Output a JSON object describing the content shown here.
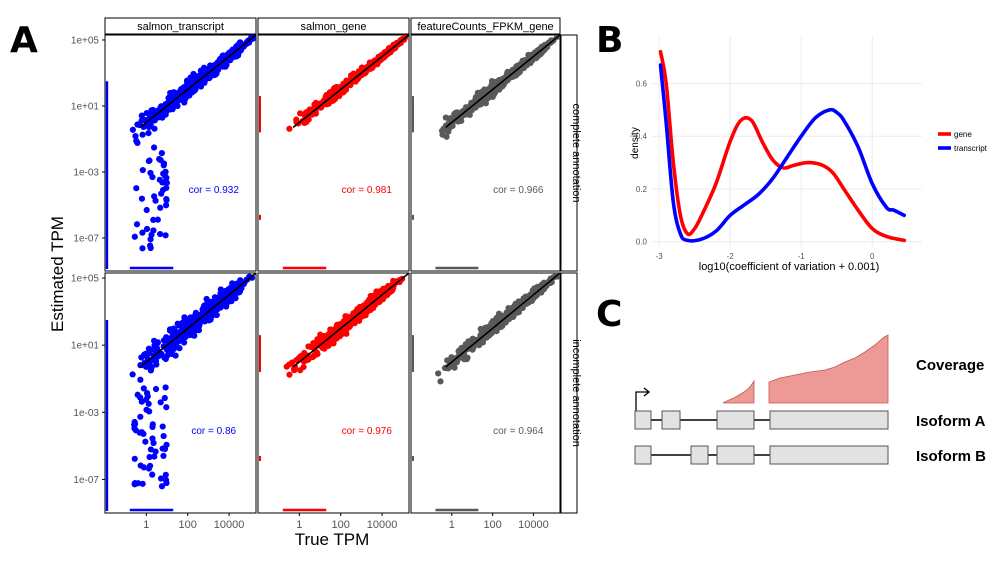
{
  "panels": {
    "A": {
      "letter": "A"
    },
    "B": {
      "letter": "B"
    },
    "C": {
      "letter": "C"
    }
  },
  "chart_data": [
    {
      "type": "scatter",
      "panel": "A",
      "xlabel": "True TPM",
      "ylabel": "Estimated TPM",
      "x_scale": "log10",
      "y_scale": "log10",
      "x_tick_labels": [
        "1",
        "100",
        "10000"
      ],
      "x_ticks": [
        1,
        100,
        10000
      ],
      "y_tick_labels": [
        "1e+05",
        "1e+01",
        "1e-03",
        "1e-07"
      ],
      "y_ticks": [
        100000,
        10,
        0.001,
        1e-07
      ],
      "xlim": [
        0.01,
        200000
      ],
      "ylim": [
        1e-09,
        200000
      ],
      "columns": [
        "salmon_transcript",
        "salmon_gene",
        "featureCounts_FPKM_gene"
      ],
      "rows": [
        "complete annotation",
        "incomplete annotation"
      ],
      "colors": [
        "#0000ff",
        "#ff0000",
        "#595959"
      ],
      "identity_line": true,
      "correlations": [
        [
          "cor = 0.932",
          "cor = 0.981",
          "cor = 0.966"
        ],
        [
          "cor = 0.86",
          "cor = 0.976",
          "cor = 0.964"
        ]
      ]
    },
    {
      "type": "line",
      "panel": "B",
      "xlabel": "log10(coefficient of variation + 0.001)",
      "ylabel": "density",
      "xlim": [
        -3.1,
        0.7
      ],
      "ylim": [
        -0.02,
        0.78
      ],
      "x_ticks": [
        -3,
        -2,
        -1,
        0
      ],
      "x_tick_labels": [
        "-3",
        "-2",
        "-1",
        "0"
      ],
      "y_ticks": [
        0.0,
        0.2,
        0.4,
        0.6
      ],
      "y_tick_labels": [
        "0.0",
        "0.2",
        "0.4",
        "0.6"
      ],
      "grid": true,
      "legend_position": "right",
      "series": [
        {
          "name": "gene",
          "color": "#ff0000",
          "x": [
            -2.98,
            -2.9,
            -2.8,
            -2.7,
            -2.6,
            -2.5,
            -2.4,
            -2.2,
            -2.0,
            -1.85,
            -1.7,
            -1.55,
            -1.4,
            -1.25,
            -1.1,
            -0.9,
            -0.7,
            -0.55,
            -0.4,
            -0.2,
            0.0,
            0.2,
            0.45
          ],
          "y": [
            0.72,
            0.6,
            0.3,
            0.1,
            0.03,
            0.05,
            0.1,
            0.22,
            0.38,
            0.46,
            0.46,
            0.38,
            0.31,
            0.28,
            0.29,
            0.3,
            0.29,
            0.26,
            0.2,
            0.12,
            0.05,
            0.02,
            0.005
          ]
        },
        {
          "name": "transcript",
          "color": "#0000ff",
          "x": [
            -2.98,
            -2.9,
            -2.8,
            -2.7,
            -2.6,
            -2.4,
            -2.2,
            -2.0,
            -1.8,
            -1.6,
            -1.4,
            -1.2,
            -1.0,
            -0.8,
            -0.6,
            -0.5,
            -0.4,
            -0.2,
            0.0,
            0.2,
            0.3,
            0.45
          ],
          "y": [
            0.67,
            0.45,
            0.15,
            0.03,
            0.005,
            0.01,
            0.04,
            0.1,
            0.14,
            0.18,
            0.24,
            0.32,
            0.4,
            0.47,
            0.5,
            0.49,
            0.46,
            0.36,
            0.22,
            0.13,
            0.12,
            0.1
          ]
        }
      ]
    }
  ],
  "diagram_c": {
    "labels": {
      "coverage": "Coverage",
      "isoform_a": "Isoform A",
      "isoform_b": "Isoform B"
    },
    "colors": {
      "coverage": "#e8807a",
      "exon": "#e2e2e2"
    }
  }
}
